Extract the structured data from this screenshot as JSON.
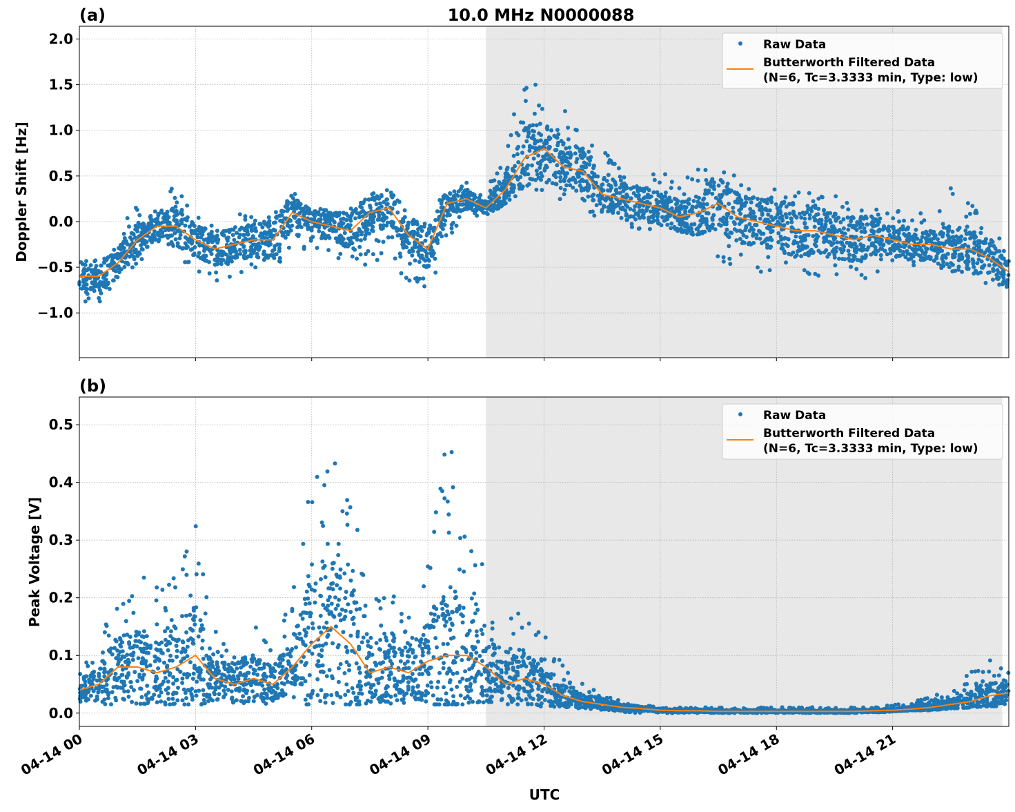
{
  "figure_title": "10.0 MHz N0000088",
  "chart_data": [
    {
      "panel_label": "(a)",
      "type": "scatter+line",
      "ylabel": "Doppler Shift [Hz]",
      "ylim": [
        -1.49,
        2.14
      ],
      "yticks": [
        "−1.0",
        "−0.5",
        "0.0",
        "0.5",
        "1.0",
        "1.5",
        "2.0"
      ],
      "ytick_values": [
        -1.0,
        -0.5,
        0.0,
        0.5,
        1.0,
        1.5,
        2.0
      ],
      "grid": true,
      "legend_placement": "top-right",
      "legend": [
        "Raw Data",
        "Butterworth Filtered Data",
        "(N=6, Tc=3.3333 min, Type: low)"
      ],
      "raw_min": [
        -0.95,
        -0.9,
        -0.7,
        -0.45,
        -0.35,
        -0.4,
        -0.55,
        -0.65,
        -0.6,
        -0.55,
        -0.6,
        -0.3,
        -0.3,
        -0.45,
        -0.5,
        -0.5,
        -0.4,
        -0.7,
        -0.8,
        -0.2,
        0.05,
        0.05,
        0.2,
        0.35,
        0.3,
        0.2,
        0.15,
        0.0,
        -0.05,
        -0.1,
        -0.1,
        -0.1,
        -0.3,
        -0.5,
        -0.5,
        -0.55,
        -0.6,
        -0.65,
        -0.6,
        -0.6,
        -0.65,
        -0.6,
        -0.5,
        -0.55,
        -0.5,
        -0.55,
        -0.6,
        -0.75,
        -0.85
      ],
      "raw_max": [
        -0.3,
        -0.3,
        -0.1,
        0.2,
        0.2,
        0.45,
        0.1,
        0.0,
        0.1,
        0.1,
        0.2,
        0.35,
        0.15,
        0.15,
        0.2,
        0.3,
        0.35,
        0.1,
        0.0,
        0.4,
        0.45,
        0.3,
        0.9,
        1.6,
        1.5,
        1.3,
        1.0,
        0.8,
        0.6,
        0.55,
        0.55,
        0.55,
        0.6,
        0.7,
        0.5,
        0.45,
        0.4,
        0.4,
        0.35,
        0.3,
        0.25,
        0.2,
        0.15,
        0.1,
        0.1,
        0.4,
        0.2,
        0.05,
        -0.2
      ],
      "filtered": [
        -0.6,
        -0.6,
        -0.45,
        -0.2,
        -0.05,
        -0.05,
        -0.2,
        -0.3,
        -0.25,
        -0.2,
        -0.2,
        0.1,
        0.0,
        -0.05,
        -0.1,
        0.1,
        0.15,
        -0.15,
        -0.3,
        0.2,
        0.25,
        0.15,
        0.35,
        0.7,
        0.8,
        0.6,
        0.55,
        0.3,
        0.25,
        0.2,
        0.15,
        0.05,
        0.1,
        0.2,
        0.05,
        0.0,
        -0.05,
        -0.1,
        -0.1,
        -0.15,
        -0.2,
        -0.15,
        -0.2,
        -0.25,
        -0.25,
        -0.3,
        -0.3,
        -0.4,
        -0.55
      ]
    },
    {
      "panel_label": "(b)",
      "type": "scatter+line",
      "xlabel": "UTC",
      "ylabel": "Peak Voltage [V]",
      "ylim": [
        -0.023,
        0.548
      ],
      "yticks": [
        "0.0",
        "0.1",
        "0.2",
        "0.3",
        "0.4",
        "0.5"
      ],
      "ytick_values": [
        0.0,
        0.1,
        0.2,
        0.3,
        0.4,
        0.5
      ],
      "grid": true,
      "legend_placement": "top-right",
      "legend": [
        "Raw Data",
        "Butterworth Filtered Data",
        "(N=6, Tc=3.3333 min, Type: low)"
      ],
      "raw_min": [
        0.015,
        0.015,
        0.015,
        0.015,
        0.015,
        0.015,
        0.015,
        0.015,
        0.015,
        0.015,
        0.015,
        0.015,
        0.015,
        0.015,
        0.015,
        0.015,
        0.015,
        0.015,
        0.015,
        0.015,
        0.015,
        0.015,
        0.015,
        0.015,
        0.01,
        0.01,
        0.005,
        0.003,
        0.0,
        0.0,
        0.0,
        0.0,
        0.0,
        0.0,
        0.0,
        0.0,
        0.0,
        0.0,
        0.0,
        0.0,
        0.0,
        0.0,
        0.003,
        0.005,
        0.005,
        0.008,
        0.01,
        0.012,
        0.012
      ],
      "raw_max": [
        0.08,
        0.12,
        0.22,
        0.25,
        0.22,
        0.3,
        0.35,
        0.15,
        0.14,
        0.17,
        0.12,
        0.2,
        0.45,
        0.44,
        0.43,
        0.2,
        0.25,
        0.18,
        0.27,
        0.5,
        0.33,
        0.25,
        0.17,
        0.2,
        0.15,
        0.08,
        0.05,
        0.04,
        0.02,
        0.015,
        0.01,
        0.01,
        0.01,
        0.01,
        0.01,
        0.01,
        0.01,
        0.01,
        0.01,
        0.01,
        0.01,
        0.01,
        0.015,
        0.02,
        0.03,
        0.04,
        0.07,
        0.1,
        0.08
      ],
      "filtered": [
        0.04,
        0.05,
        0.08,
        0.08,
        0.07,
        0.08,
        0.1,
        0.06,
        0.05,
        0.06,
        0.05,
        0.08,
        0.12,
        0.15,
        0.12,
        0.07,
        0.08,
        0.07,
        0.09,
        0.1,
        0.1,
        0.08,
        0.05,
        0.06,
        0.05,
        0.03,
        0.02,
        0.015,
        0.01,
        0.008,
        0.005,
        0.004,
        0.004,
        0.003,
        0.003,
        0.003,
        0.003,
        0.003,
        0.003,
        0.003,
        0.003,
        0.004,
        0.005,
        0.007,
        0.01,
        0.015,
        0.02,
        0.03,
        0.035
      ]
    }
  ],
  "time_utc": [
    "00:00",
    "00:30",
    "01:00",
    "01:30",
    "02:00",
    "02:30",
    "03:00",
    "03:30",
    "04:00",
    "04:30",
    "05:00",
    "05:30",
    "06:00",
    "06:30",
    "07:00",
    "07:30",
    "08:00",
    "08:30",
    "09:00",
    "09:30",
    "10:00",
    "10:30",
    "11:00",
    "11:30",
    "12:00",
    "12:30",
    "13:00",
    "13:30",
    "14:00",
    "14:30",
    "15:00",
    "15:30",
    "16:00",
    "16:30",
    "17:00",
    "17:30",
    "18:00",
    "18:30",
    "19:00",
    "19:30",
    "20:00",
    "20:30",
    "21:00",
    "21:30",
    "22:00",
    "22:30",
    "23:00",
    "23:30",
    "24:00"
  ],
  "xlim": [
    "04-14 00:00",
    "04-15 00:00"
  ],
  "xticks": [
    "04-14 00",
    "04-14 03",
    "04-14 06",
    "04-14 09",
    "04-14 12",
    "04-14 15",
    "04-14 18",
    "04-14 21"
  ],
  "xtick_hours": [
    0,
    3,
    6,
    9,
    12,
    15,
    18,
    21
  ],
  "shaded_region": [
    "10:30",
    "23:50"
  ],
  "colors": {
    "raw": "#1f77b4",
    "filtered": "#ff7f0e",
    "shade": "#e8e8e8",
    "grid": "#b0b0b0"
  }
}
